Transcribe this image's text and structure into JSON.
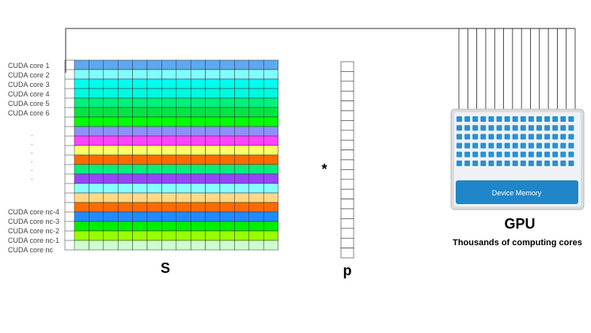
{
  "core_labels_top": [
    "CUDA core 1",
    "CUDA core 2",
    "CUDA core 3",
    "CUDA core 4",
    "CUDA core 5",
    "CUDA core 6"
  ],
  "core_labels_bottom": [
    "CUDA core nc-4",
    "CUDA core nc-3",
    "CUDA core nc-2",
    "CUDA core nc-1",
    "CUDA core nc"
  ],
  "ellipsis_dots": [
    ".",
    ".",
    ".",
    ".",
    ".",
    "."
  ],
  "matrix": {
    "label": "S",
    "columns": 14,
    "row_colors": [
      "#5aaaf0",
      "#7fffff",
      "#00ffee",
      "#00fae0",
      "#00f07a",
      "#00e640",
      "#00ff00",
      "#8f8fff",
      "#ff44ff",
      "#ffff66",
      "#ff6a00",
      "#00f07a",
      "#9944ff",
      "#88ffff",
      "#ffd98a",
      "#ff6a00",
      "#1e8cff",
      "#00f000",
      "#99ff00",
      "#ccffcc"
    ]
  },
  "operator": "*",
  "vector": {
    "label": "p",
    "cells": 20
  },
  "gpu": {
    "arrow_count": 14,
    "core_grid_rows": 6,
    "core_grid_cols": 15,
    "memory_label": "Device Memory",
    "title": "GPU",
    "subtitle": "Thousands of computing cores",
    "colors": {
      "core": "#2a8fd6",
      "memory": "#1f86c9",
      "frame": "#d8d8d8",
      "panel": "#eef2f5"
    }
  }
}
